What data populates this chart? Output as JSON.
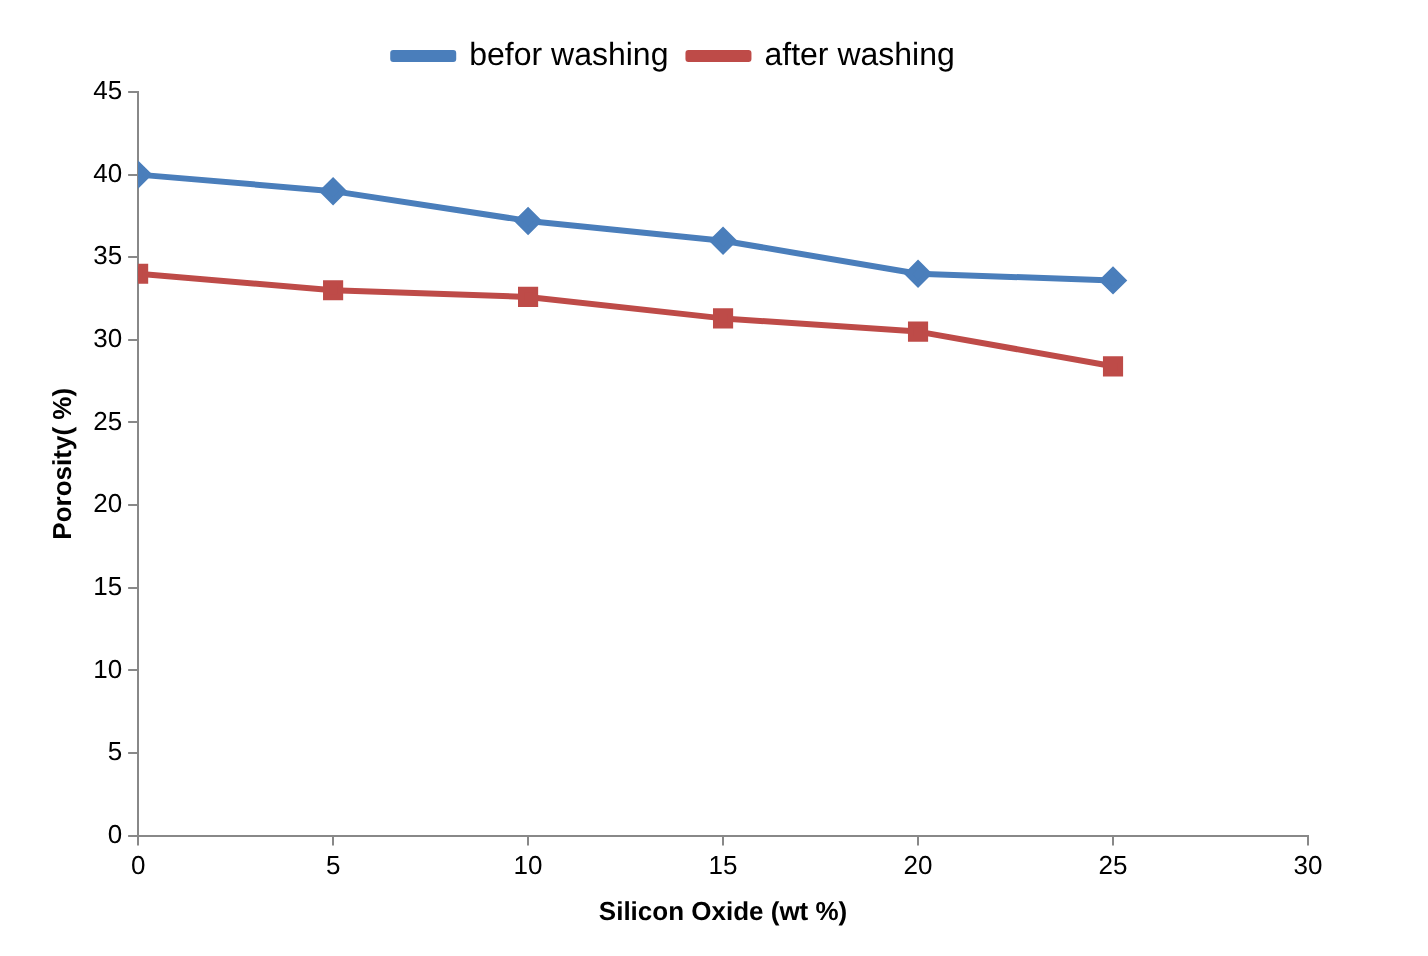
{
  "chart_data": {
    "type": "line",
    "xlabel": "Silicon Oxide (wt %)",
    "ylabel": "Porosity( %)",
    "x": [
      0,
      5,
      10,
      15,
      20,
      25
    ],
    "series": [
      {
        "name": "befor washing",
        "color": "#4a7ebb",
        "marker": "diamond",
        "values": [
          40,
          39,
          37.2,
          36,
          34,
          33.6
        ]
      },
      {
        "name": "after washing",
        "color": "#be4b48",
        "marker": "square",
        "values": [
          34,
          33,
          32.6,
          31.3,
          30.5,
          28.4
        ]
      }
    ],
    "xlim": [
      0,
      30
    ],
    "xticks": [
      0,
      5,
      10,
      15,
      20,
      25,
      30
    ],
    "ylim": [
      0,
      45
    ],
    "yticks": [
      0,
      5,
      10,
      15,
      20,
      25,
      30,
      35,
      40,
      45
    ],
    "grid": false,
    "legend": "top",
    "line_style": "solid"
  }
}
